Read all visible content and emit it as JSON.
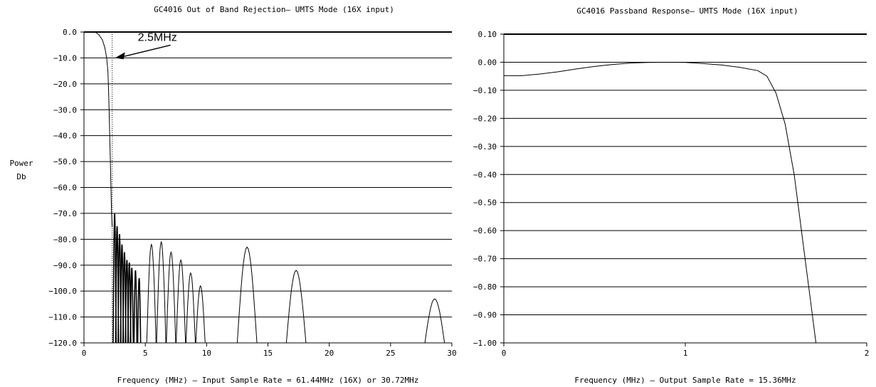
{
  "chart_data": [
    {
      "type": "line",
      "title": "GC4016 Out of Band Rejection– UMTS Mode (16X input)",
      "xlabel": "Frequency (MHz) – Input Sample Rate = 61.44MHz (16X) or 30.72MHz",
      "ylabel": [
        "Power",
        "Db"
      ],
      "xlim": [
        0,
        30
      ],
      "ylim": [
        -120,
        0
      ],
      "x_ticks": [
        0,
        5,
        10,
        15,
        20,
        25,
        30
      ],
      "x_tick_labels": [
        "0",
        "5",
        "10",
        "15",
        "20",
        "25",
        "30"
      ],
      "y_ticks": [
        0,
        -10,
        -20,
        -30,
        -40,
        -50,
        -60,
        -70,
        -80,
        -90,
        -100,
        -110,
        -120
      ],
      "y_tick_labels": [
        "0.0",
        "−10.0",
        "−20.0",
        "−30.0",
        "−40.0",
        "−50.0",
        "−60.0",
        "−70.0",
        "−80.0",
        "−90.0",
        "−100.0",
        "−110.0",
        "−120.0"
      ],
      "grid": "horizontal",
      "annotations": [
        {
          "text": "2.5MHz",
          "x": 2.3,
          "y": -10,
          "style": "arrow"
        }
      ],
      "reference_line": {
        "x": 2.3,
        "style": "dotted"
      },
      "series": [
        {
          "values_note_free": true,
          "x": [
            0,
            0.9,
            1.2,
            1.5,
            1.7,
            1.85,
            1.95,
            2.0,
            2.05,
            2.1,
            2.15,
            2.2,
            2.25,
            2.3
          ],
          "y": [
            0,
            0,
            -1,
            -3,
            -6,
            -10,
            -15,
            -22,
            -30,
            -40,
            -50,
            -60,
            -70,
            -75
          ]
        }
      ],
      "lobes": [
        {
          "x_center": 2.5,
          "peak": -70
        },
        {
          "x_center": 2.7,
          "peak": -75
        },
        {
          "x_center": 2.9,
          "peak": -78
        },
        {
          "x_center": 3.1,
          "peak": -82
        },
        {
          "x_center": 3.3,
          "peak": -85
        },
        {
          "x_center": 3.5,
          "peak": -88
        },
        {
          "x_center": 3.7,
          "peak": -89
        },
        {
          "x_center": 3.9,
          "peak": -91
        },
        {
          "x_center": 4.2,
          "peak": -92
        },
        {
          "x_center": 4.5,
          "peak": -95
        },
        {
          "x_center": 5.5,
          "peak": -82
        },
        {
          "x_center": 6.3,
          "peak": -81
        },
        {
          "x_center": 7.1,
          "peak": -85
        },
        {
          "x_center": 7.9,
          "peak": -88
        },
        {
          "x_center": 8.7,
          "peak": -93
        },
        {
          "x_center": 9.5,
          "peak": -98
        },
        {
          "x_center": 13.3,
          "peak": -83
        },
        {
          "x_center": 17.3,
          "peak": -92
        },
        {
          "x_center": 28.6,
          "peak": -103
        }
      ]
    },
    {
      "type": "line",
      "title": "GC4016 Passband Response– UMTS Mode (16X input)",
      "xlabel": "Frequency (MHz) – Output Sample Rate = 15.36MHz",
      "ylabel": [],
      "xlim": [
        0,
        2
      ],
      "ylim": [
        -1.0,
        0.1
      ],
      "x_ticks": [
        0,
        1,
        2
      ],
      "x_tick_labels": [
        "0",
        "1",
        "2"
      ],
      "y_ticks": [
        0.1,
        0.0,
        -0.1,
        -0.2,
        -0.3,
        -0.4,
        -0.5,
        -0.6,
        -0.7,
        -0.8,
        -0.9,
        -1.0
      ],
      "y_tick_labels": [
        "0.10",
        "0.00",
        "−0.10",
        "−0.20",
        "−0.30",
        "−0.40",
        "−0.50",
        "−0.60",
        "−0.70",
        "−0.80",
        "−0.90",
        "−1.00"
      ],
      "grid": "horizontal",
      "series": [
        {
          "x": [
            0,
            0.1,
            0.2,
            0.3,
            0.4,
            0.5,
            0.6,
            0.7,
            0.8,
            0.9,
            1.0,
            1.1,
            1.2,
            1.3,
            1.4,
            1.45,
            1.5,
            1.55,
            1.6,
            1.63,
            1.66,
            1.69,
            1.72
          ],
          "y": [
            -0.048,
            -0.048,
            -0.042,
            -0.034,
            -0.024,
            -0.015,
            -0.008,
            -0.003,
            -0.001,
            0.0,
            -0.001,
            -0.005,
            -0.01,
            -0.018,
            -0.03,
            -0.05,
            -0.11,
            -0.22,
            -0.4,
            -0.55,
            -0.7,
            -0.85,
            -1.0
          ]
        }
      ]
    }
  ]
}
